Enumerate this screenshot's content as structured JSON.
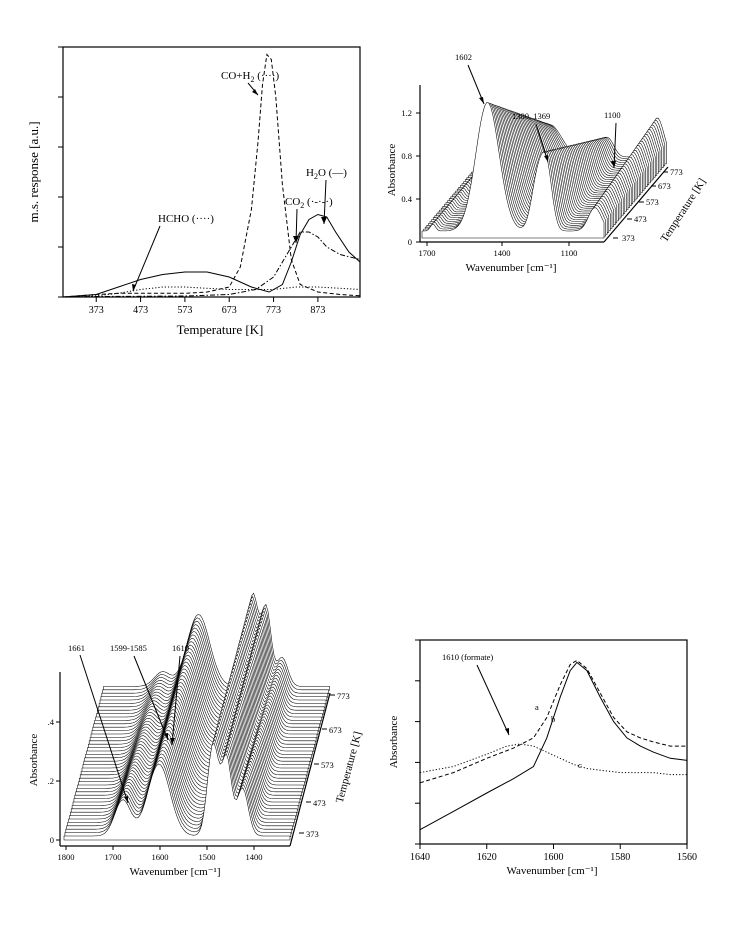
{
  "chart_data": [
    {
      "id": "tpd",
      "type": "line",
      "title": "",
      "xlabel": "Temperature [K]",
      "ylabel": "m.s. response [a.u.]",
      "xlim": [
        298,
        968
      ],
      "ylim": [
        0,
        1.0
      ],
      "x_ticks": [
        373,
        473,
        573,
        673,
        773,
        873
      ],
      "y_ticks": [
        0,
        0.2,
        0.4,
        0.6,
        0.8,
        1.0
      ],
      "y_tick_labels_shown": false,
      "series": [
        {
          "name": "HCHO (·····)",
          "style": "dotted",
          "x": [
            298,
            373,
            423,
            473,
            523,
            573,
            623,
            673,
            723,
            773,
            823,
            873,
            923,
            968
          ],
          "y": [
            0.0,
            0.005,
            0.015,
            0.03,
            0.04,
            0.04,
            0.035,
            0.03,
            0.03,
            0.03,
            0.04,
            0.04,
            0.035,
            0.03
          ]
        },
        {
          "name": "CO+H2 (----)",
          "style": "dashed",
          "x": [
            298,
            373,
            423,
            473,
            523,
            573,
            623,
            673,
            698,
            723,
            738,
            748,
            758,
            768,
            778,
            793,
            813,
            833,
            873,
            923,
            968
          ],
          "y": [
            0.0,
            0.01,
            0.015,
            0.015,
            0.015,
            0.015,
            0.02,
            0.04,
            0.12,
            0.35,
            0.62,
            0.85,
            0.97,
            0.95,
            0.8,
            0.45,
            0.15,
            0.05,
            0.02,
            0.01,
            0.005
          ]
        },
        {
          "name": "CO2 (-·-·-)",
          "style": "dashdot",
          "x": [
            298,
            373,
            473,
            573,
            673,
            733,
            773,
            813,
            833,
            853,
            873,
            893,
            923,
            968
          ],
          "y": [
            0.0,
            0.002,
            0.003,
            0.004,
            0.01,
            0.03,
            0.08,
            0.2,
            0.26,
            0.26,
            0.24,
            0.2,
            0.17,
            0.15
          ]
        },
        {
          "name": "H2O (——)",
          "style": "solid",
          "x": [
            298,
            373,
            423,
            473,
            523,
            573,
            623,
            673,
            723,
            763,
            793,
            813,
            833,
            853,
            873,
            893,
            913,
            943,
            968
          ],
          "y": [
            0.0,
            0.01,
            0.04,
            0.07,
            0.09,
            0.1,
            0.1,
            0.08,
            0.04,
            0.02,
            0.05,
            0.14,
            0.25,
            0.31,
            0.33,
            0.32,
            0.26,
            0.18,
            0.14
          ]
        }
      ],
      "annotations": [
        {
          "label": "CO+H",
          "sub": "2",
          "suffix": " (····)"
        },
        {
          "label": "HCHO (····)",
          "sub": "",
          "suffix": ""
        },
        {
          "label": "CO",
          "sub": "2",
          "suffix": " (·-·-·)"
        },
        {
          "label": "H",
          "sub": "2",
          "suffix": "O (—)"
        }
      ]
    },
    {
      "id": "ir_top",
      "type": "line",
      "title": "",
      "xlabel": "Wavenumber [cm⁻¹]",
      "ylabel": "Absorbance",
      "zlabel": "Temperature [K]",
      "xlim": [
        1700,
        950
      ],
      "ylim": [
        0,
        1.4
      ],
      "x_ticks": [
        "1700",
        "1400",
        "1100"
      ],
      "y_ticks": [
        "0",
        "0.4",
        "0.8",
        "1.2"
      ],
      "z_ticks": [
        "373",
        "473",
        "573",
        "673",
        "773"
      ],
      "spectra_count": 40,
      "peaks_cm": [
        1602,
        1380,
        1369,
        1100
      ],
      "annotations": [
        "1602",
        "1380, 1369",
        "1100"
      ]
    },
    {
      "id": "ir_bottom",
      "type": "line",
      "title": "",
      "xlabel": "Wavenumber [cm⁻¹]",
      "ylabel": "Absorbance",
      "zlabel": "Temperature [K]",
      "xlim": [
        1800,
        1300
      ],
      "ylim": [
        0,
        0.5
      ],
      "x_ticks": [
        "1800",
        "1700",
        "1600",
        "1500",
        "1400"
      ],
      "y_ticks": [
        "0",
        ".2",
        ".4"
      ],
      "z_ticks": [
        "373",
        "473",
        "573",
        "673",
        "773"
      ],
      "spectra_count": 45,
      "peaks_cm": [
        1661,
        1599,
        1585,
        1610
      ],
      "annotations": [
        "1661",
        "1599-1585",
        "1610"
      ]
    },
    {
      "id": "deconv",
      "type": "line",
      "title": "",
      "xlabel": "Wavenumber [cm⁻¹]",
      "ylabel": "Absorbance",
      "xlim": [
        1640,
        1560
      ],
      "ylim": [
        0,
        1.0
      ],
      "x_ticks": [
        1640,
        1620,
        1600,
        1580,
        1560
      ],
      "y_ticks": [
        0,
        0.2,
        0.4,
        0.6,
        0.8,
        1.0
      ],
      "y_tick_labels_shown": false,
      "series": [
        {
          "name": "a",
          "style": "dashed",
          "x": [
            1640,
            1630,
            1620,
            1612,
            1606,
            1602,
            1598,
            1595,
            1593,
            1590,
            1586,
            1582,
            1578,
            1574,
            1570,
            1565,
            1560
          ],
          "y": [
            0.3,
            0.35,
            0.42,
            0.47,
            0.52,
            0.62,
            0.78,
            0.88,
            0.9,
            0.86,
            0.74,
            0.62,
            0.55,
            0.52,
            0.5,
            0.48,
            0.48
          ]
        },
        {
          "name": "b",
          "style": "solid",
          "x": [
            1640,
            1630,
            1620,
            1612,
            1606,
            1602,
            1598,
            1595,
            1593,
            1590,
            1586,
            1582,
            1578,
            1574,
            1570,
            1565,
            1560
          ],
          "y": [
            0.07,
            0.16,
            0.25,
            0.32,
            0.38,
            0.52,
            0.72,
            0.85,
            0.89,
            0.85,
            0.72,
            0.6,
            0.52,
            0.48,
            0.45,
            0.42,
            0.41
          ]
        },
        {
          "name": "c",
          "style": "dotted",
          "x": [
            1640,
            1630,
            1620,
            1614,
            1610,
            1606,
            1602,
            1598,
            1594,
            1590,
            1585,
            1580,
            1575,
            1570,
            1565,
            1560
          ],
          "y": [
            0.35,
            0.38,
            0.44,
            0.48,
            0.49,
            0.48,
            0.45,
            0.42,
            0.39,
            0.37,
            0.36,
            0.35,
            0.35,
            0.35,
            0.34,
            0.34
          ]
        }
      ],
      "annotations": [
        "1610 (formate)",
        "a",
        "b",
        "c"
      ]
    }
  ]
}
